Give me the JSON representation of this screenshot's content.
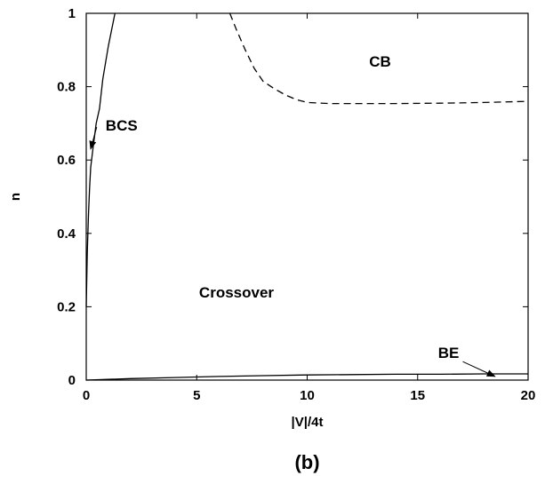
{
  "chart_data": {
    "type": "line",
    "xlabel": "|V|/4t",
    "ylabel": "n",
    "xlim": [
      0,
      20
    ],
    "ylim": [
      0,
      1
    ],
    "xticks": [
      0,
      5,
      10,
      15,
      20
    ],
    "yticks": [
      0,
      0.2,
      0.4,
      0.6,
      0.8,
      1
    ],
    "ytick_labels": [
      "0",
      "0.2",
      "0.4",
      "0.6",
      "0.8",
      "1"
    ],
    "grid": false,
    "caption": "(b)",
    "series": [
      {
        "style": "solid",
        "x": [
          0,
          0.05,
          0.1,
          0.15,
          0.2,
          0.3,
          0.45,
          0.6,
          0.75,
          1.0,
          1.3
        ],
        "y": [
          0.2,
          0.35,
          0.45,
          0.52,
          0.58,
          0.63,
          0.7,
          0.74,
          0.82,
          0.91,
          1.0
        ]
      },
      {
        "style": "dashed",
        "x": [
          6.5,
          6.8,
          7.2,
          7.6,
          8.0,
          8.5,
          9.0,
          9.5,
          10.0,
          11,
          12,
          14,
          16,
          18,
          20
        ],
        "y": [
          1.0,
          0.955,
          0.9,
          0.85,
          0.815,
          0.795,
          0.778,
          0.765,
          0.757,
          0.754,
          0.754,
          0.754,
          0.755,
          0.757,
          0.76
        ]
      },
      {
        "style": "solid",
        "x": [
          0,
          2,
          4,
          6,
          8,
          10,
          12,
          14,
          16,
          18,
          20
        ],
        "y": [
          0,
          0.004,
          0.007,
          0.01,
          0.012,
          0.014,
          0.015,
          0.016,
          0.016,
          0.017,
          0.017
        ]
      }
    ],
    "annotations": [
      {
        "text": "CB",
        "x": 13.3,
        "y": 0.855
      },
      {
        "text": "BCS",
        "x": 1.6,
        "y": 0.68,
        "arrow_to": [
          0.2,
          0.63
        ]
      },
      {
        "text": "Crossover",
        "x": 6.8,
        "y": 0.225
      },
      {
        "text": "BE",
        "x": 16.4,
        "y": 0.06,
        "arrow_to": [
          18.5,
          0.01
        ]
      }
    ]
  }
}
